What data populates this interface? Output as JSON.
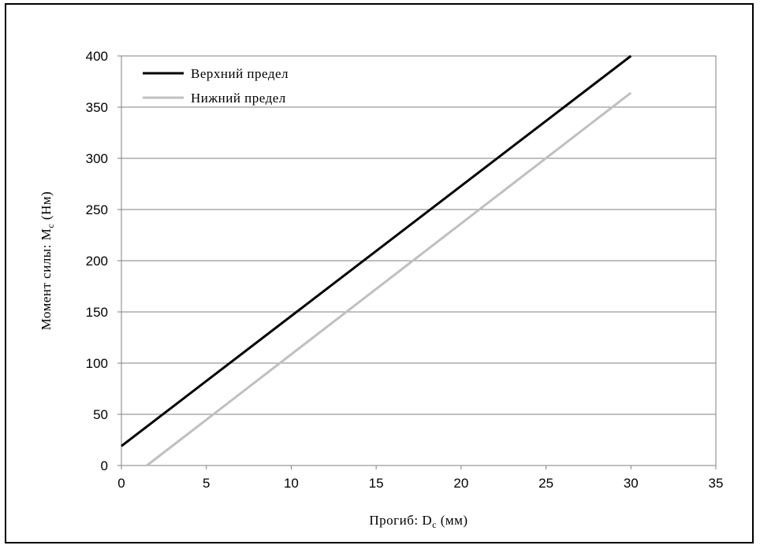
{
  "chart_data": {
    "type": "line",
    "xlabel": {
      "main": "Прогиб: D",
      "sub": "c",
      "rest": " (мм)"
    },
    "ylabel": {
      "main": "Момент силы: M",
      "sub": "c",
      "rest": " (Нм)"
    },
    "xlim": [
      0,
      35
    ],
    "ylim": [
      0,
      400
    ],
    "xticks": [
      "0",
      "5",
      "10",
      "15",
      "20",
      "25",
      "30",
      "35"
    ],
    "yticks": [
      "0",
      "50",
      "100",
      "150",
      "200",
      "250",
      "300",
      "350",
      "400"
    ],
    "grid": "horizontal",
    "legend_position": "top-left",
    "series": [
      {
        "name": "Верхний предел",
        "color": "#000000",
        "points": [
          [
            0,
            19
          ],
          [
            30,
            402
          ]
        ]
      },
      {
        "name": "Нижний предел",
        "color": "#c0c0c0",
        "points": [
          [
            1.5,
            0
          ],
          [
            30,
            364
          ]
        ]
      }
    ]
  }
}
